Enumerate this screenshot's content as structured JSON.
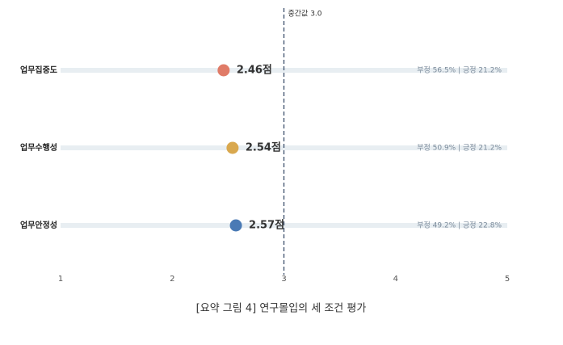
{
  "chart_data": {
    "type": "dot",
    "title": "[요약 그림 4] 연구몰입의 세 조건 평가",
    "categories": [
      "업무집중도",
      "업무수행성",
      "업무안정성"
    ],
    "values": [
      2.46,
      2.54,
      2.57
    ],
    "value_labels": [
      "2.46점",
      "2.54점",
      "2.57점"
    ],
    "colors": [
      "#e07b67",
      "#d9a84e",
      "#4a7ab5"
    ],
    "side_labels": [
      "부정 56.5%  |  긍정 21.2%",
      "부정 50.9%  |  긍정 21.2%",
      "부정 49.2%  |  긍정 22.8%"
    ],
    "reference": {
      "value": 3,
      "label": "중간값 3.0"
    },
    "xlim": [
      1,
      5
    ],
    "xticks": [
      1,
      2,
      3,
      4,
      5
    ]
  }
}
